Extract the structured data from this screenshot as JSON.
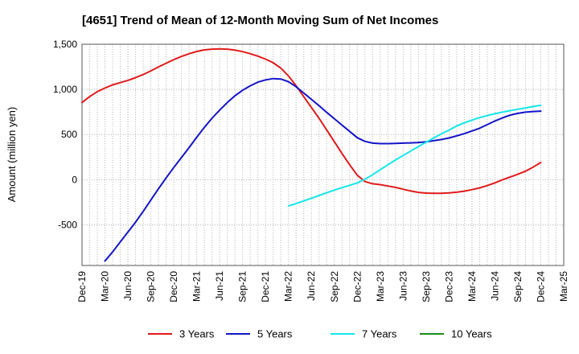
{
  "chart_data": {
    "type": "line",
    "title": "[4651]  Trend of Mean of 12-Month Moving Sum of Net Incomes",
    "xlabel": "",
    "ylabel": "Amount (million yen)",
    "x_tick_labels": [
      "Dec-19",
      "Mar-20",
      "Jun-20",
      "Sep-20",
      "Dec-20",
      "Mar-21",
      "Jun-21",
      "Sep-21",
      "Dec-21",
      "Mar-22",
      "Jun-22",
      "Sep-22",
      "Dec-22",
      "Mar-23",
      "Jun-23",
      "Sep-23",
      "Dec-23",
      "Mar-24",
      "Jun-24",
      "Sep-24",
      "Dec-24",
      "Mar-25"
    ],
    "y_ticks": [
      -500,
      0,
      500,
      1000,
      1500
    ],
    "y_tick_labels": [
      "-500",
      "0",
      "500",
      "1,000",
      "1,500"
    ],
    "ylim": [
      -950,
      1500
    ],
    "grid": true,
    "legend_position": "bottom",
    "series": [
      {
        "name": "3 Years",
        "color": "#e01b1b",
        "x": [
          "Dec-19",
          "Jan-20",
          "Feb-20",
          "Mar-20",
          "Apr-20",
          "May-20",
          "Jun-20",
          "Jul-20",
          "Aug-20",
          "Sep-20",
          "Oct-20",
          "Nov-20",
          "Dec-20",
          "Jan-21",
          "Feb-21",
          "Mar-21",
          "Apr-21",
          "May-21",
          "Jun-21",
          "Jul-21",
          "Aug-21",
          "Sep-21",
          "Oct-21",
          "Nov-21",
          "Dec-21",
          "Jan-22",
          "Feb-22",
          "Mar-22",
          "Apr-22",
          "May-22",
          "Jun-22",
          "Jul-22",
          "Aug-22",
          "Sep-22",
          "Oct-22",
          "Nov-22",
          "Dec-22",
          "Jan-23",
          "Feb-23",
          "Mar-23",
          "Apr-23",
          "May-23",
          "Jun-23",
          "Jul-23",
          "Aug-23",
          "Sep-23",
          "Oct-23",
          "Nov-23",
          "Dec-23",
          "Jan-24",
          "Feb-24",
          "Mar-24",
          "Apr-24",
          "May-24",
          "Jun-24",
          "Jul-24",
          "Aug-24",
          "Sep-24",
          "Oct-24",
          "Nov-24",
          "Dec-24"
        ],
        "values": [
          855,
          920,
          975,
          1015,
          1050,
          1075,
          1100,
          1130,
          1165,
          1205,
          1250,
          1290,
          1330,
          1365,
          1395,
          1420,
          1438,
          1446,
          1448,
          1446,
          1435,
          1418,
          1395,
          1368,
          1335,
          1295,
          1235,
          1150,
          1040,
          920,
          800,
          680,
          550,
          420,
          290,
          165,
          50,
          -20,
          -45,
          -55,
          -70,
          -85,
          -105,
          -125,
          -140,
          -148,
          -150,
          -150,
          -146,
          -138,
          -127,
          -110,
          -90,
          -65,
          -35,
          0,
          30,
          60,
          95,
          140,
          190
        ]
      },
      {
        "name": "5 Years",
        "color": "#1414c8",
        "x": [
          "Mar-20",
          "Apr-20",
          "May-20",
          "Jun-20",
          "Jul-20",
          "Aug-20",
          "Sep-20",
          "Oct-20",
          "Nov-20",
          "Dec-20",
          "Jan-21",
          "Feb-21",
          "Mar-21",
          "Apr-21",
          "May-21",
          "Jun-21",
          "Jul-21",
          "Aug-21",
          "Sep-21",
          "Oct-21",
          "Nov-21",
          "Dec-21",
          "Jan-22",
          "Feb-22",
          "Mar-22",
          "Apr-22",
          "May-22",
          "Jun-22",
          "Jul-22",
          "Aug-22",
          "Sep-22",
          "Oct-22",
          "Nov-22",
          "Dec-22",
          "Jan-23",
          "Feb-23",
          "Mar-23",
          "Apr-23",
          "May-23",
          "Jun-23",
          "Jul-23",
          "Aug-23",
          "Sep-23",
          "Oct-23",
          "Nov-23",
          "Dec-23",
          "Jan-24",
          "Feb-24",
          "Mar-24",
          "Apr-24",
          "May-24",
          "Jun-24",
          "Jul-24",
          "Aug-24",
          "Sep-24",
          "Oct-24",
          "Nov-24",
          "Dec-24"
        ],
        "values": [
          -900,
          -800,
          -690,
          -580,
          -470,
          -350,
          -225,
          -100,
          20,
          135,
          245,
          355,
          470,
          580,
          680,
          770,
          855,
          930,
          990,
          1040,
          1080,
          1105,
          1120,
          1115,
          1085,
          1030,
          960,
          890,
          820,
          745,
          675,
          605,
          535,
          465,
          425,
          405,
          400,
          400,
          402,
          405,
          408,
          412,
          420,
          432,
          445,
          462,
          485,
          510,
          540,
          570,
          610,
          650,
          685,
          715,
          735,
          748,
          755,
          760
        ]
      },
      {
        "name": "7 Years",
        "color": "#14e6ea",
        "x": [
          "Mar-22",
          "Apr-22",
          "May-22",
          "Jun-22",
          "Jul-22",
          "Aug-22",
          "Sep-22",
          "Oct-22",
          "Nov-22",
          "Dec-22",
          "Jan-23",
          "Feb-23",
          "Mar-23",
          "Apr-23",
          "May-23",
          "Jun-23",
          "Jul-23",
          "Aug-23",
          "Sep-23",
          "Oct-23",
          "Nov-23",
          "Dec-23",
          "Jan-24",
          "Feb-24",
          "Mar-24",
          "Apr-24",
          "May-24",
          "Jun-24",
          "Jul-24",
          "Aug-24",
          "Sep-24",
          "Oct-24",
          "Nov-24",
          "Dec-24"
        ],
        "values": [
          -290,
          -265,
          -235,
          -205,
          -175,
          -145,
          -115,
          -88,
          -62,
          -35,
          5,
          55,
          110,
          165,
          218,
          268,
          318,
          368,
          415,
          462,
          508,
          550,
          595,
          630,
          660,
          688,
          710,
          730,
          748,
          765,
          780,
          795,
          810,
          825
        ]
      },
      {
        "name": "10 Years",
        "color": "#1a8a1a",
        "x": [],
        "values": []
      }
    ]
  }
}
